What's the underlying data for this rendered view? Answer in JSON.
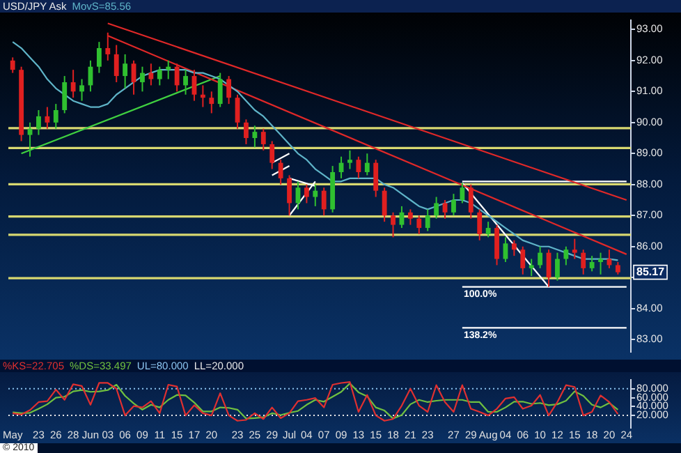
{
  "chart_data": [
    {
      "type": "candlestick",
      "title": "USD/JPY Ask",
      "categories": [
        null,
        null,
        null,
        null,
        null,
        null,
        null,
        null,
        null,
        null,
        null,
        null,
        null,
        null,
        null,
        null,
        null,
        null,
        null,
        null,
        null,
        null,
        null,
        null,
        null,
        null,
        null,
        null,
        null,
        null,
        null,
        null,
        null,
        null,
        null,
        null,
        null,
        null,
        null,
        null,
        null,
        null,
        null,
        null,
        null,
        null,
        null,
        null,
        null,
        null,
        null,
        null,
        null,
        null,
        null,
        null,
        null,
        null,
        null,
        null,
        null,
        null,
        null,
        null,
        null,
        null,
        null,
        null,
        null,
        null,
        null,
        null
      ],
      "series": [
        {
          "ohlc": [
            [
              92.0,
              92.1,
              91.6,
              91.7
            ],
            [
              91.7,
              91.8,
              89.4,
              89.6
            ],
            [
              89.6,
              90.0,
              88.9,
              89.8
            ],
            [
              89.8,
              90.4,
              89.6,
              90.2
            ],
            [
              90.2,
              90.5,
              89.8,
              90.0
            ],
            [
              90.0,
              90.6,
              89.8,
              90.4
            ],
            [
              90.4,
              91.5,
              90.3,
              91.3
            ],
            [
              91.3,
              91.7,
              90.8,
              91.0
            ],
            [
              91.0,
              91.4,
              90.7,
              91.2
            ],
            [
              91.2,
              92.0,
              91.0,
              91.8
            ],
            [
              91.8,
              92.6,
              91.6,
              92.4
            ],
            [
              92.4,
              92.9,
              92.0,
              92.2
            ],
            [
              92.2,
              92.5,
              91.3,
              91.5
            ],
            [
              91.5,
              92.2,
              91.1,
              91.9
            ],
            [
              91.9,
              92.0,
              90.9,
              91.3
            ],
            [
              91.3,
              91.8,
              91.0,
              91.6
            ],
            [
              91.6,
              91.9,
              91.2,
              91.4
            ],
            [
              91.4,
              91.8,
              91.2,
              91.7
            ],
            [
              91.7,
              92.0,
              91.4,
              91.8
            ],
            [
              91.8,
              91.9,
              91.0,
              91.2
            ],
            [
              91.2,
              91.7,
              90.9,
              91.5
            ],
            [
              91.5,
              91.7,
              90.7,
              90.9
            ],
            [
              90.9,
              91.2,
              90.5,
              90.8
            ],
            [
              90.8,
              91.0,
              90.3,
              90.6
            ],
            [
              90.6,
              91.6,
              90.5,
              91.4
            ],
            [
              91.4,
              91.5,
              90.6,
              90.8
            ],
            [
              90.8,
              90.9,
              89.8,
              90.0
            ],
            [
              90.0,
              90.1,
              89.3,
              89.5
            ],
            [
              89.5,
              89.9,
              89.2,
              89.7
            ],
            [
              89.7,
              89.8,
              89.1,
              89.3
            ],
            [
              89.3,
              89.4,
              88.5,
              88.7
            ],
            [
              88.7,
              88.8,
              88.0,
              88.2
            ],
            [
              88.2,
              88.3,
              87.0,
              87.4
            ],
            [
              87.4,
              88.1,
              87.2,
              87.9
            ],
            [
              87.9,
              88.0,
              87.4,
              87.6
            ],
            [
              87.6,
              88.0,
              87.3,
              87.8
            ],
            [
              87.8,
              87.9,
              87.0,
              87.2
            ],
            [
              87.2,
              88.6,
              87.1,
              88.4
            ],
            [
              88.4,
              88.9,
              88.2,
              88.7
            ],
            [
              88.7,
              89.1,
              88.5,
              88.8
            ],
            [
              88.8,
              88.9,
              88.2,
              88.4
            ],
            [
              88.4,
              89.0,
              88.3,
              88.7
            ],
            [
              88.7,
              88.8,
              87.6,
              87.8
            ],
            [
              87.8,
              87.9,
              86.8,
              87.0
            ],
            [
              87.0,
              87.1,
              86.3,
              86.7
            ],
            [
              86.7,
              87.3,
              86.6,
              87.1
            ],
            [
              87.1,
              87.2,
              86.7,
              86.9
            ],
            [
              86.9,
              87.0,
              86.4,
              86.6
            ],
            [
              86.6,
              87.2,
              86.5,
              87.0
            ],
            [
              87.0,
              87.6,
              86.9,
              87.4
            ],
            [
              87.4,
              87.5,
              86.9,
              87.1
            ],
            [
              87.1,
              87.7,
              87.0,
              87.5
            ],
            [
              87.5,
              88.05,
              87.4,
              87.9
            ],
            [
              87.9,
              88.0,
              86.9,
              87.1
            ],
            [
              87.1,
              87.2,
              86.2,
              86.4
            ],
            [
              86.4,
              86.8,
              86.3,
              86.6
            ],
            [
              86.6,
              86.7,
              85.4,
              85.6
            ],
            [
              85.6,
              86.3,
              85.5,
              86.1
            ],
            [
              86.1,
              86.2,
              85.7,
              85.9
            ],
            [
              85.9,
              86.0,
              85.1,
              85.3
            ],
            [
              85.3,
              85.6,
              85.05,
              85.4
            ],
            [
              85.4,
              86.0,
              85.3,
              85.8
            ],
            [
              85.8,
              85.9,
              84.7,
              85.0
            ],
            [
              85.0,
              85.8,
              84.9,
              85.6
            ],
            [
              85.6,
              86.0,
              85.4,
              85.9
            ],
            [
              85.9,
              86.25,
              85.6,
              85.8
            ],
            [
              85.8,
              85.9,
              85.1,
              85.3
            ],
            [
              85.3,
              85.7,
              85.2,
              85.5
            ],
            [
              85.5,
              85.8,
              85.1,
              85.6
            ],
            [
              85.6,
              85.9,
              85.3,
              85.4
            ],
            [
              85.4,
              85.5,
              85.1,
              85.17
            ],
            null
          ],
          "colors": [
            "#e02020",
            "#e02020",
            "#30c030",
            "#30c030",
            "#e02020",
            "#30c030",
            "#30c030",
            "#e02020",
            "#30c030",
            "#30c030",
            "#30c030",
            "#e02020",
            "#e02020",
            "#30c030",
            "#e02020",
            "#30c030",
            "#e02020",
            "#30c030",
            "#30c030",
            "#e02020",
            "#30c030",
            "#e02020",
            "#e02020",
            "#e02020",
            "#30c030",
            "#e02020",
            "#e02020",
            "#e02020",
            "#30c030",
            "#e02020",
            "#e02020",
            "#e02020",
            "#e02020",
            "#30c030",
            "#e02020",
            "#30c030",
            "#e02020",
            "#30c030",
            "#30c030",
            "#30c030",
            "#e02020",
            "#30c030",
            "#e02020",
            "#e02020",
            "#e02020",
            "#30c030",
            "#e02020",
            "#e02020",
            "#30c030",
            "#30c030",
            "#e02020",
            "#30c030",
            "#30c030",
            "#e02020",
            "#e02020",
            "#30c030",
            "#e02020",
            "#30c030",
            "#e02020",
            "#e02020",
            "#30c030",
            "#30c030",
            "#e02020",
            "#30c030",
            "#30c030",
            "#e02020",
            "#e02020",
            "#30c030",
            "#30c030",
            "#e02020",
            "#e02020",
            null
          ]
        },
        {
          "type": "line",
          "name": "MovS=85.56",
          "color": "#5fb4c8",
          "values": [
            92.6,
            92.4,
            92.1,
            91.8,
            91.4,
            91.1,
            90.9,
            90.7,
            90.6,
            90.5,
            90.5,
            90.6,
            90.9,
            91.1,
            91.3,
            91.5,
            91.6,
            91.7,
            91.7,
            91.7,
            91.7,
            91.6,
            91.6,
            91.5,
            91.4,
            91.2,
            91.0,
            90.7,
            90.4,
            90.2,
            89.9,
            89.6,
            89.3,
            89.0,
            88.8,
            88.5,
            88.3,
            88.1,
            88.1,
            88.2,
            88.2,
            88.2,
            88.2,
            88.0,
            87.9,
            87.7,
            87.5,
            87.3,
            87.2,
            87.3,
            87.4,
            87.5,
            87.5,
            87.4,
            87.2,
            87.0,
            86.8,
            86.6,
            86.4,
            86.2,
            86.1,
            86.0,
            86.0,
            85.9,
            85.8,
            85.7,
            85.6,
            85.6,
            85.6,
            85.6,
            85.56,
            null
          ]
        },
        {
          "type": "line",
          "color": "#e02828",
          "values": [
            null,
            null,
            null,
            null,
            null,
            null,
            null,
            null,
            null,
            null,
            null,
            93.2,
            null,
            null,
            null,
            null,
            null,
            null,
            null,
            null,
            null,
            null,
            null,
            null,
            null,
            null,
            null,
            null,
            null,
            null,
            null,
            null,
            null,
            null,
            null,
            null,
            null,
            null,
            null,
            null,
            null,
            null,
            null,
            null,
            null,
            null,
            null,
            null,
            null,
            null,
            null,
            null,
            null,
            null,
            null,
            null,
            null,
            null,
            null,
            null,
            null,
            null,
            null,
            null,
            null,
            null,
            null,
            null,
            null,
            null,
            null,
            87.5
          ]
        },
        {
          "type": "line",
          "color": "#e02828",
          "values": [
            null,
            null,
            null,
            null,
            null,
            null,
            null,
            null,
            null,
            null,
            null,
            92.8,
            null,
            null,
            null,
            null,
            null,
            null,
            null,
            null,
            null,
            null,
            null,
            null,
            null,
            null,
            null,
            null,
            null,
            null,
            null,
            null,
            null,
            null,
            null,
            null,
            null,
            null,
            null,
            null,
            null,
            null,
            null,
            null,
            null,
            null,
            null,
            null,
            null,
            null,
            null,
            null,
            null,
            null,
            null,
            null,
            null,
            null,
            null,
            null,
            null,
            null,
            null,
            null,
            null,
            null,
            null,
            null,
            null,
            null,
            null,
            85.75
          ]
        },
        {
          "type": "line",
          "color": "#40d040",
          "values": [
            null,
            89.0,
            null,
            null,
            null,
            null,
            null,
            null,
            null,
            null,
            null,
            null,
            null,
            null,
            null,
            null,
            null,
            null,
            null,
            null,
            null,
            null,
            null,
            null,
            91.5,
            null,
            null,
            null,
            null,
            null,
            null,
            null,
            null,
            null,
            null,
            null,
            null,
            null,
            null,
            null,
            null,
            null,
            null,
            null,
            null,
            null,
            null,
            null,
            null,
            null,
            null,
            null,
            null,
            null,
            null,
            null,
            null,
            null,
            null,
            null,
            null,
            null,
            null,
            null,
            null,
            null,
            null,
            null,
            null,
            null,
            null,
            null
          ]
        },
        {
          "type": "line",
          "color": "#ffffff",
          "values": [
            null,
            null,
            null,
            null,
            null,
            null,
            null,
            null,
            null,
            null,
            null,
            null,
            null,
            null,
            null,
            null,
            null,
            null,
            null,
            null,
            null,
            null,
            null,
            null,
            null,
            null,
            null,
            null,
            null,
            null,
            null,
            null,
            null,
            null,
            null,
            null,
            null,
            null,
            null,
            null,
            null,
            null,
            null,
            null,
            null,
            null,
            null,
            null,
            null,
            null,
            null,
            null,
            88.05,
            null,
            null,
            null,
            null,
            null,
            null,
            null,
            null,
            null,
            84.7,
            null,
            null,
            null,
            null,
            null,
            null,
            null,
            null,
            null
          ]
        },
        {
          "type": "line",
          "color": "#ffffff",
          "values": [
            null,
            null,
            null,
            null,
            null,
            null,
            null,
            null,
            null,
            null,
            null,
            null,
            null,
            null,
            null,
            null,
            null,
            null,
            null,
            null,
            null,
            null,
            null,
            null,
            null,
            null,
            null,
            null,
            null,
            null,
            88.3,
            null,
            88.6,
            null,
            null,
            null,
            null,
            null,
            null,
            null,
            null,
            null,
            null,
            null,
            null,
            null,
            null,
            null,
            null,
            null,
            null,
            null,
            null,
            null,
            null,
            null,
            null,
            null,
            null,
            null,
            null,
            null,
            null,
            null,
            null,
            null,
            null,
            null,
            null,
            null,
            null,
            null
          ]
        },
        {
          "type": "line",
          "color": "#ffffff",
          "values": [
            null,
            null,
            null,
            null,
            null,
            null,
            null,
            null,
            null,
            null,
            null,
            null,
            null,
            null,
            null,
            null,
            null,
            null,
            null,
            null,
            null,
            null,
            null,
            null,
            null,
            null,
            null,
            null,
            null,
            null,
            88.7,
            null,
            89.0,
            null,
            null,
            null,
            null,
            null,
            null,
            null,
            null,
            null,
            null,
            null,
            null,
            null,
            null,
            null,
            null,
            null,
            null,
            null,
            null,
            null,
            null,
            null,
            null,
            null,
            null,
            null,
            null,
            null,
            null,
            null,
            null,
            null,
            null,
            null,
            null,
            null,
            null,
            null
          ]
        },
        {
          "type": "line",
          "color": "#ffffff",
          "values": [
            null,
            null,
            null,
            null,
            null,
            null,
            null,
            null,
            null,
            null,
            null,
            null,
            null,
            null,
            null,
            null,
            null,
            null,
            null,
            null,
            null,
            null,
            null,
            null,
            null,
            null,
            null,
            null,
            null,
            null,
            null,
            null,
            87.0,
            null,
            null,
            88.1,
            null,
            null,
            null,
            null,
            null,
            null,
            null,
            null,
            null,
            null,
            null,
            null,
            null,
            null,
            null,
            null,
            null,
            null,
            null,
            null,
            null,
            null,
            null,
            null,
            null,
            null,
            null,
            null,
            null,
            null,
            null,
            null,
            null,
            null,
            null,
            null
          ]
        },
        {
          "type": "line",
          "color": "#ffffff",
          "values": [
            null,
            null,
            null,
            null,
            null,
            null,
            null,
            null,
            null,
            null,
            null,
            null,
            null,
            null,
            null,
            null,
            null,
            null,
            null,
            null,
            null,
            null,
            null,
            null,
            null,
            null,
            null,
            null,
            null,
            null,
            null,
            null,
            88.2,
            null,
            null,
            87.95,
            null,
            null,
            null,
            null,
            null,
            null,
            null,
            null,
            null,
            null,
            null,
            null,
            null,
            null,
            null,
            null,
            null,
            null,
            null,
            null,
            null,
            null,
            null,
            null,
            null,
            null,
            null,
            null,
            null,
            null,
            null,
            null,
            null,
            null,
            null,
            null
          ]
        },
        {
          "type": "line",
          "color": "#ffffff",
          "values": [
            null,
            null,
            null,
            null,
            null,
            null,
            null,
            null,
            null,
            null,
            null,
            null,
            null,
            null,
            null,
            null,
            null,
            null,
            null,
            null,
            null,
            null,
            null,
            null,
            null,
            null,
            null,
            null,
            null,
            null,
            null,
            null,
            null,
            null,
            null,
            null,
            null,
            null,
            null,
            null,
            null,
            null,
            null,
            null,
            null,
            null,
            null,
            null,
            null,
            null,
            null,
            null,
            88.1,
            88.1,
            88.1,
            88.1,
            88.1,
            88.1,
            88.1,
            88.1,
            88.1,
            88.1,
            88.1,
            88.1,
            88.1,
            88.1,
            88.1,
            88.1,
            88.1,
            88.1,
            88.1,
            88.1
          ]
        },
        {
          "type": "line",
          "name": "100.0%",
          "color": "#ffffff",
          "values": [
            null,
            null,
            null,
            null,
            null,
            null,
            null,
            null,
            null,
            null,
            null,
            null,
            null,
            null,
            null,
            null,
            null,
            null,
            null,
            null,
            null,
            null,
            null,
            null,
            null,
            null,
            null,
            null,
            null,
            null,
            null,
            null,
            null,
            null,
            null,
            null,
            null,
            null,
            null,
            null,
            null,
            null,
            null,
            null,
            null,
            null,
            null,
            null,
            null,
            null,
            null,
            null,
            84.7,
            84.7,
            84.7,
            84.7,
            84.7,
            84.7,
            84.7,
            84.7,
            84.7,
            84.7,
            84.7,
            84.7,
            84.7,
            84.7,
            84.7,
            84.7,
            84.7,
            84.7,
            84.7,
            84.7
          ]
        },
        {
          "type": "line",
          "name": "138.2%",
          "color": "#ffffff",
          "values": [
            null,
            null,
            null,
            null,
            null,
            null,
            null,
            null,
            null,
            null,
            null,
            null,
            null,
            null,
            null,
            null,
            null,
            null,
            null,
            null,
            null,
            null,
            null,
            null,
            null,
            null,
            null,
            null,
            null,
            null,
            null,
            null,
            null,
            null,
            null,
            null,
            null,
            null,
            null,
            null,
            null,
            null,
            null,
            null,
            null,
            null,
            null,
            null,
            null,
            null,
            null,
            null,
            83.38,
            83.38,
            83.38,
            83.38,
            83.38,
            83.38,
            83.38,
            83.38,
            83.38,
            83.38,
            83.38,
            83.38,
            83.38,
            83.38,
            83.38,
            83.38,
            83.38,
            83.38,
            83.38,
            83.38
          ]
        }
      ],
      "ylim": [
        82.6,
        93.3
      ],
      "yticks": [
        {
          "value": 83,
          "label": "83.00"
        },
        {
          "value": 84,
          "label": "84.00"
        },
        {
          "value": 85,
          "label": null
        },
        {
          "value": 86,
          "label": "86.00"
        },
        {
          "value": 87,
          "label": "87.00"
        },
        {
          "value": 88,
          "label": "88.00"
        },
        {
          "value": 89,
          "label": "89.00"
        },
        {
          "value": 90,
          "label": "90.00"
        },
        {
          "value": 91,
          "label": "91.00"
        },
        {
          "value": 92,
          "label": "92.00"
        },
        {
          "value": 93,
          "label": "93.00"
        }
      ],
      "ref_lines": [
        {
          "axis": "y",
          "value": 89.82,
          "color": "#d8d870"
        },
        {
          "axis": "y",
          "value": 89.18,
          "color": "#d8d870"
        },
        {
          "axis": "y",
          "value": 88.01,
          "color": "#d8d870"
        },
        {
          "axis": "y",
          "value": 86.97,
          "color": "#d8d870"
        },
        {
          "axis": "y",
          "value": 86.38,
          "color": "#d8d870"
        },
        {
          "axis": "y",
          "value": 84.98,
          "color": "#d8d870"
        }
      ],
      "annotations": [
        {
          "text": "85.17",
          "y": 85.17
        }
      ],
      "legend": "top left",
      "marker": "none",
      "grid": false,
      "tick_labels": "y"
    },
    {
      "type": "line",
      "categories": [
        "May",
        null,
        null,
        "23",
        null,
        "26",
        null,
        "28",
        null,
        "Jun",
        null,
        "03",
        null,
        "06",
        null,
        "09",
        null,
        "11",
        null,
        "15",
        null,
        "17",
        null,
        "20",
        null,
        null,
        "23",
        null,
        "25",
        null,
        "29",
        null,
        "Jul",
        null,
        "04",
        null,
        "07",
        null,
        "09",
        null,
        "13",
        null,
        "15",
        null,
        "18",
        null,
        "21",
        null,
        "23",
        null,
        null,
        "27",
        null,
        "29",
        null,
        "Aug",
        null,
        "04",
        null,
        "06",
        null,
        "10",
        null,
        "12",
        null,
        "15",
        null,
        "18",
        null,
        "20",
        null,
        "24"
      ],
      "series": [
        {
          "name": "%KS=22.705",
          "color": "#e03030",
          "values": [
            25,
            22,
            32,
            50,
            52,
            78,
            55,
            90,
            86,
            44,
            93,
            93,
            80,
            20,
            41,
            38,
            52,
            25,
            89,
            85,
            20,
            43,
            25,
            20,
            70,
            20,
            8,
            10,
            25,
            12,
            38,
            14,
            25,
            52,
            55,
            59,
            38,
            89,
            93,
            95,
            28,
            66,
            20,
            8,
            12,
            42,
            80,
            42,
            28,
            88,
            50,
            28,
            88,
            35,
            28,
            20,
            35,
            58,
            61,
            35,
            42,
            66,
            20,
            50,
            88,
            84,
            20,
            28,
            65,
            50,
            23,
            null
          ]
        },
        {
          "name": "%DS=33.497",
          "color": "#70c040",
          "values": [
            27,
            25,
            26,
            35,
            45,
            60,
            62,
            74,
            77,
            73,
            74,
            77,
            89,
            64,
            47,
            33,
            44,
            38,
            55,
            66,
            65,
            49,
            29,
            29,
            38,
            37,
            33,
            13,
            14,
            16,
            25,
            21,
            26,
            30,
            44,
            55,
            51,
            62,
            73,
            92,
            72,
            63,
            38,
            31,
            13,
            21,
            45,
            55,
            50,
            53,
            55,
            55,
            55,
            50,
            50,
            28,
            28,
            38,
            51,
            51,
            46,
            48,
            43,
            45,
            53,
            74,
            64,
            44,
            38,
            48,
            33,
            null
          ]
        }
      ],
      "ylim": [
        -8,
        100
      ],
      "yticks": [
        {
          "value": 20,
          "label": "20.000"
        },
        {
          "value": 40,
          "label": "40.000"
        },
        {
          "value": 60,
          "label": "60.000"
        },
        {
          "value": 80,
          "label": "80.000"
        }
      ],
      "ref_lines": [
        {
          "axis": "y",
          "value": 80,
          "label": "UL=80.000",
          "color": "#8cc4f0",
          "line_style": "dotted"
        },
        {
          "axis": "y",
          "value": 20,
          "label": "LL=20.000",
          "color": "#e8e8e8",
          "line_style": "dotted"
        }
      ],
      "annotations": [
        "© 2010"
      ],
      "legend": "top left",
      "marker": "none",
      "grid": false
    }
  ]
}
